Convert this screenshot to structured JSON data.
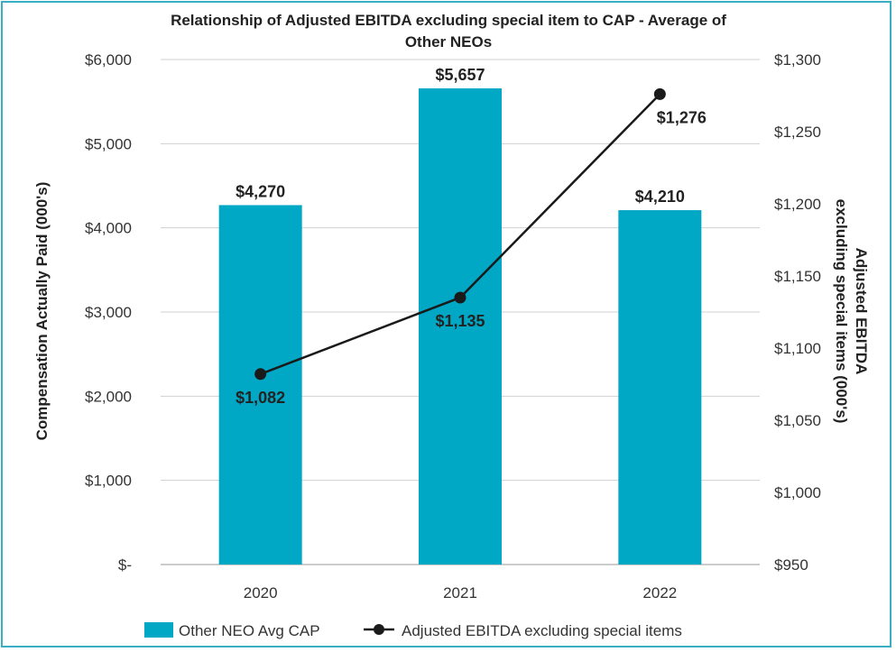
{
  "chart_data": {
    "type": "bar+line",
    "title_lines": [
      "Relationship of Adjusted EBITDA excluding special item to CAP - Average of",
      "Other NEOs"
    ],
    "categories": [
      "2020",
      "2021",
      "2022"
    ],
    "bar_series": {
      "name": "Other NEO Avg CAP",
      "values": [
        4270,
        5657,
        4210
      ],
      "labels": [
        "$4,270",
        "$5,657",
        "$4,210"
      ],
      "color": "#00a8c6"
    },
    "line_series": {
      "name": "Adjusted EBITDA excluding special items",
      "values": [
        1082,
        1135,
        1276
      ],
      "labels": [
        "$1,082",
        "$1,135",
        "$1,276"
      ],
      "color": "#1a1a1a"
    },
    "y_left": {
      "title": "Compensation Actually Paid (000's)",
      "min": 0,
      "max": 6000,
      "ticks": [
        0,
        1000,
        2000,
        3000,
        4000,
        5000,
        6000
      ],
      "tick_labels": [
        "$-",
        "$1,000",
        "$2,000",
        "$3,000",
        "$4,000",
        "$5,000",
        "$6,000"
      ]
    },
    "y_right": {
      "title_lines": [
        "Adjusted EBITDA",
        "excluding special items (000's)"
      ],
      "min": 950,
      "max": 1300,
      "ticks": [
        950,
        1000,
        1050,
        1100,
        1150,
        1200,
        1250,
        1300
      ],
      "tick_labels": [
        "$950",
        "$1,000",
        "$1,050",
        "$1,100",
        "$1,150",
        "$1,200",
        "$1,250",
        "$1,300"
      ]
    },
    "grid": true,
    "legend_position": "bottom"
  }
}
